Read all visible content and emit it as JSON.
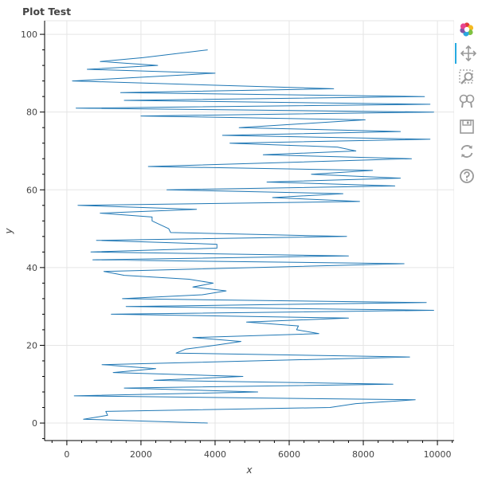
{
  "chart_data": {
    "type": "line",
    "title": "Plot Test",
    "xlabel": "x",
    "ylabel": "y",
    "xlim": [
      -600,
      10450
    ],
    "ylim": [
      -4.5,
      103.5
    ],
    "x_ticks": [
      0,
      2000,
      4000,
      6000,
      8000,
      10000
    ],
    "y_ticks": [
      0,
      20,
      40,
      60,
      80,
      100
    ],
    "grid": true,
    "legend": "none",
    "line_color": "#1f77b4",
    "series": [
      {
        "x": [
          3800,
          450,
          1100,
          1050,
          7100,
          7800,
          9400,
          200,
          5150,
          1550,
          8800,
          2350,
          4750,
          1250,
          2400,
          950,
          9250,
          2950,
          3200,
          4000,
          4700,
          3400,
          6800,
          6200,
          6250,
          4850,
          7600,
          1200,
          9900,
          1600,
          9700,
          1500,
          3650,
          4300,
          3400,
          3950,
          3300,
          1550,
          1000,
          9100,
          700,
          7600,
          650,
          4050,
          4050,
          800,
          7550,
          2800,
          2750,
          2300,
          2300,
          900,
          3500,
          300,
          7900,
          5550,
          7450,
          2700,
          8850,
          5400,
          9000,
          6600,
          8250,
          2200,
          9300,
          5300,
          7800,
          7300,
          4400,
          9800,
          4200,
          9000,
          4650,
          8050,
          2000,
          9900,
          250,
          9800,
          1550,
          9650,
          1450,
          7200,
          150,
          4000,
          550,
          2450,
          900,
          2050,
          3800
        ],
        "y": [
          0,
          1,
          2,
          3,
          4,
          5,
          6,
          7,
          8,
          9,
          10,
          11,
          12,
          13,
          14,
          15,
          17,
          18,
          19,
          20,
          21,
          22,
          23,
          24,
          25,
          26,
          27,
          28,
          29,
          30,
          31,
          32,
          33,
          34,
          35,
          36,
          37,
          38,
          39,
          41,
          42,
          43,
          44,
          45,
          46,
          47,
          48,
          49,
          50,
          52,
          53,
          54,
          55,
          56,
          57,
          58,
          59,
          60,
          61,
          62,
          63,
          64,
          65,
          66,
          68,
          69,
          70,
          71,
          72,
          73,
          74,
          75,
          76,
          78,
          79,
          80,
          81,
          82,
          83,
          84,
          85,
          86,
          88,
          90,
          91,
          92,
          93,
          94,
          96
        ]
      }
    ]
  },
  "toolbar": {
    "items": [
      {
        "name": "bokeh-logo-icon"
      },
      {
        "name": "pan-icon"
      },
      {
        "name": "box-zoom-icon"
      },
      {
        "name": "wheel-zoom-icon"
      },
      {
        "name": "save-icon"
      },
      {
        "name": "reset-icon"
      },
      {
        "name": "help-icon"
      }
    ]
  }
}
